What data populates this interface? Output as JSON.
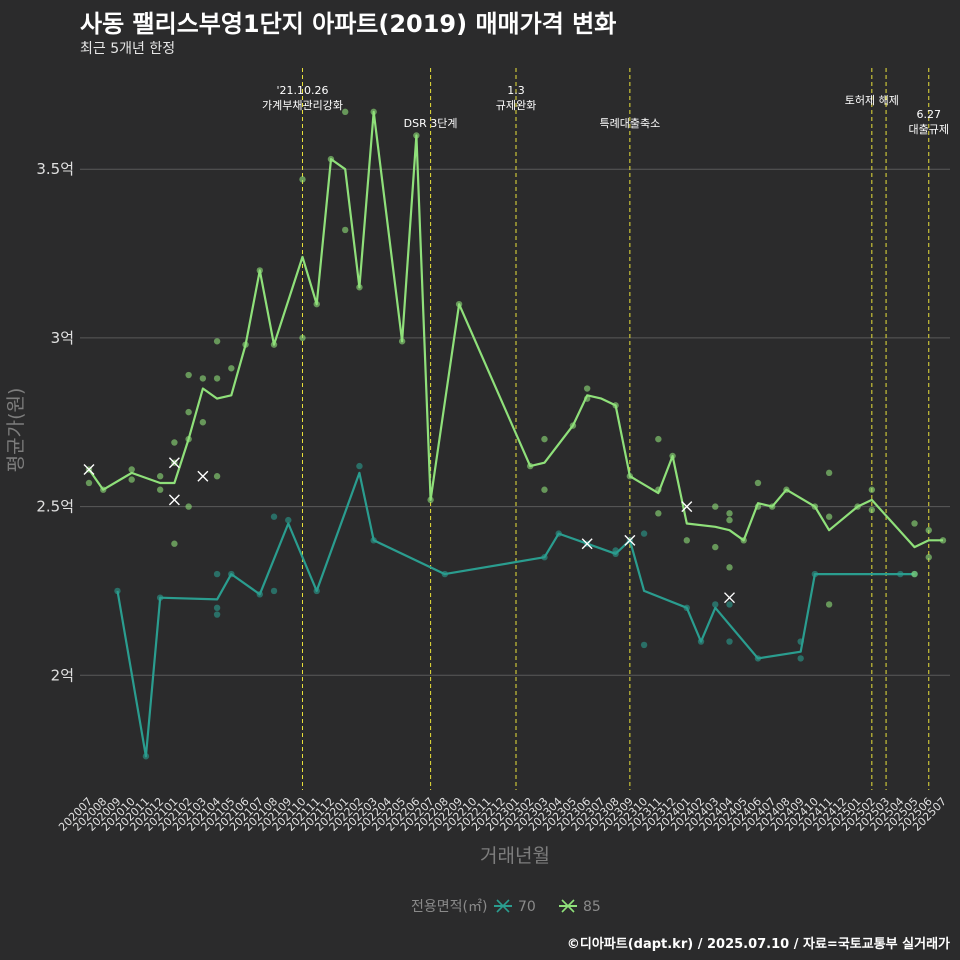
{
  "header": {
    "title": "사동 팰리스부영1단지 아파트(2019) 매매가격 변화",
    "subtitle": "최근 5개년 한정",
    "caption": "©디아파트(dapt.kr) / 2025.07.10 / 자료=국토교통부 실거래가"
  },
  "colors": {
    "background": "#2b2b2c",
    "grid": "#5a5a5a",
    "series_70": "#2a9d8f",
    "series_85": "#8fe07a",
    "event_line": "#e8e03a"
  },
  "chart_data": {
    "type": "line",
    "xlabel": "거래년월",
    "ylabel": "평균가(원)",
    "ylim": [
      1.66,
      3.8
    ],
    "yticks": [
      2,
      2.5,
      3,
      3.5
    ],
    "ytick_labels": [
      "2억",
      "2.5억",
      "3억",
      "3.5억"
    ],
    "months": [
      "202007",
      "202008",
      "202009",
      "202010",
      "202011",
      "202012",
      "202101",
      "202102",
      "202103",
      "202104",
      "202105",
      "202106",
      "202107",
      "202108",
      "202109",
      "202110",
      "202111",
      "202112",
      "202201",
      "202202",
      "202203",
      "202204",
      "202205",
      "202206",
      "202207",
      "202208",
      "202209",
      "202210",
      "202211",
      "202212",
      "202301",
      "202302",
      "202303",
      "202304",
      "202305",
      "202306",
      "202307",
      "202308",
      "202309",
      "202310",
      "202311",
      "202312",
      "202401",
      "202402",
      "202403",
      "202404",
      "202405",
      "202406",
      "202407",
      "202408",
      "202409",
      "202410",
      "202411",
      "202412",
      "202501",
      "202502",
      "202503",
      "202504",
      "202505",
      "202506",
      "202507"
    ],
    "legend_title": "전용면적(㎡)",
    "series": [
      {
        "name": "70",
        "color": "#2a9d8f",
        "line": [
          [
            "202009",
            2.25
          ],
          [
            "202011",
            1.76
          ],
          [
            "202012",
            2.23
          ],
          [
            "202104",
            2.225
          ],
          [
            "202105",
            2.3
          ],
          [
            "202107",
            2.24
          ],
          [
            "202109",
            2.45
          ],
          [
            "202111",
            2.25
          ],
          [
            "202202",
            2.6
          ],
          [
            "202203",
            2.4
          ],
          [
            "202208",
            2.3
          ],
          [
            "202303",
            2.35
          ],
          [
            "202304",
            2.42
          ],
          [
            "202306",
            2.39
          ],
          [
            "202308",
            2.36
          ],
          [
            "202309",
            2.4
          ],
          [
            "202310",
            2.25
          ],
          [
            "202401",
            2.2
          ],
          [
            "202402",
            2.1
          ],
          [
            "202403",
            2.2
          ],
          [
            "202404",
            2.15
          ],
          [
            "202406",
            2.05
          ],
          [
            "202409",
            2.07
          ],
          [
            "202410",
            2.3
          ],
          [
            "202504",
            2.3
          ],
          [
            "202505",
            2.3
          ]
        ],
        "points": [
          [
            "202009",
            2.25
          ],
          [
            "202011",
            1.76
          ],
          [
            "202012",
            2.23
          ],
          [
            "202104",
            2.2
          ],
          [
            "202104",
            2.18
          ],
          [
            "202104",
            2.3
          ],
          [
            "202105",
            2.3
          ],
          [
            "202107",
            2.24
          ],
          [
            "202108",
            2.25
          ],
          [
            "202108",
            2.47
          ],
          [
            "202109",
            2.46
          ],
          [
            "202111",
            2.25
          ],
          [
            "202202",
            2.62
          ],
          [
            "202203",
            2.4
          ],
          [
            "202208",
            2.3
          ],
          [
            "202303",
            2.35
          ],
          [
            "202304",
            2.42
          ],
          [
            "202306",
            2.39
          ],
          [
            "202308",
            2.36
          ],
          [
            "202308",
            2.37
          ],
          [
            "202309",
            2.4
          ],
          [
            "202310",
            2.09
          ],
          [
            "202310",
            2.42
          ],
          [
            "202401",
            2.2
          ],
          [
            "202402",
            2.1
          ],
          [
            "202403",
            2.21
          ],
          [
            "202404",
            2.1
          ],
          [
            "202404",
            2.21
          ],
          [
            "202406",
            2.05
          ],
          [
            "202409",
            2.05
          ],
          [
            "202409",
            2.1
          ],
          [
            "202410",
            2.3
          ],
          [
            "202504",
            2.3
          ],
          [
            "202505",
            2.3
          ]
        ],
        "cancelled": [
          [
            "202306",
            2.39
          ],
          [
            "202309",
            2.4
          ],
          [
            "202404",
            2.23
          ]
        ]
      },
      {
        "name": "85",
        "color": "#8fe07a",
        "line": [
          [
            "202007",
            2.61
          ],
          [
            "202008",
            2.55
          ],
          [
            "202010",
            2.6
          ],
          [
            "202012",
            2.57
          ],
          [
            "202101",
            2.57
          ],
          [
            "202102",
            2.7
          ],
          [
            "202103",
            2.85
          ],
          [
            "202104",
            2.82
          ],
          [
            "202105",
            2.83
          ],
          [
            "202106",
            2.98
          ],
          [
            "202107",
            3.2
          ],
          [
            "202108",
            2.98
          ],
          [
            "202110",
            3.24
          ],
          [
            "202111",
            3.1
          ],
          [
            "202112",
            3.53
          ],
          [
            "202201",
            3.5
          ],
          [
            "202202",
            3.15
          ],
          [
            "202203",
            3.67
          ],
          [
            "202205",
            2.99
          ],
          [
            "202206",
            3.6
          ],
          [
            "202207",
            2.52
          ],
          [
            "202209",
            3.1
          ],
          [
            "202302",
            2.62
          ],
          [
            "202303",
            2.63
          ],
          [
            "202305",
            2.74
          ],
          [
            "202306",
            2.83
          ],
          [
            "202307",
            2.82
          ],
          [
            "202308",
            2.8
          ],
          [
            "202309",
            2.59
          ],
          [
            "202311",
            2.54
          ],
          [
            "202312",
            2.65
          ],
          [
            "202401",
            2.45
          ],
          [
            "202403",
            2.44
          ],
          [
            "202404",
            2.43
          ],
          [
            "202405",
            2.4
          ],
          [
            "202406",
            2.51
          ],
          [
            "202407",
            2.5
          ],
          [
            "202408",
            2.55
          ],
          [
            "202410",
            2.5
          ],
          [
            "202411",
            2.43
          ],
          [
            "202501",
            2.5
          ],
          [
            "202502",
            2.52
          ],
          [
            "202505",
            2.38
          ],
          [
            "202506",
            2.4
          ],
          [
            "202507",
            2.4
          ]
        ],
        "points": [
          [
            "202007",
            2.57
          ],
          [
            "202007",
            2.61
          ],
          [
            "202008",
            2.55
          ],
          [
            "202010",
            2.61
          ],
          [
            "202010",
            2.58
          ],
          [
            "202012",
            2.59
          ],
          [
            "202012",
            2.55
          ],
          [
            "202101",
            2.69
          ],
          [
            "202101",
            2.63
          ],
          [
            "202101",
            2.39
          ],
          [
            "202102",
            2.89
          ],
          [
            "202102",
            2.78
          ],
          [
            "202102",
            2.7
          ],
          [
            "202102",
            2.5
          ],
          [
            "202103",
            2.88
          ],
          [
            "202103",
            2.75
          ],
          [
            "202104",
            2.99
          ],
          [
            "202104",
            2.88
          ],
          [
            "202104",
            2.59
          ],
          [
            "202105",
            2.91
          ],
          [
            "202106",
            2.98
          ],
          [
            "202107",
            3.2
          ],
          [
            "202108",
            2.98
          ],
          [
            "202110",
            3.47
          ],
          [
            "202110",
            3.0
          ],
          [
            "202111",
            3.1
          ],
          [
            "202112",
            3.53
          ],
          [
            "202201",
            3.32
          ],
          [
            "202201",
            3.67
          ],
          [
            "202202",
            3.15
          ],
          [
            "202203",
            3.67
          ],
          [
            "202205",
            2.99
          ],
          [
            "202206",
            3.6
          ],
          [
            "202207",
            2.52
          ],
          [
            "202209",
            3.1
          ],
          [
            "202302",
            2.62
          ],
          [
            "202303",
            2.7
          ],
          [
            "202303",
            2.55
          ],
          [
            "202305",
            2.74
          ],
          [
            "202306",
            2.85
          ],
          [
            "202306",
            2.82
          ],
          [
            "202308",
            2.8
          ],
          [
            "202309",
            2.59
          ],
          [
            "202311",
            2.7
          ],
          [
            "202311",
            2.55
          ],
          [
            "202311",
            2.48
          ],
          [
            "202312",
            2.65
          ],
          [
            "202401",
            2.4
          ],
          [
            "202403",
            2.5
          ],
          [
            "202403",
            2.38
          ],
          [
            "202404",
            2.48
          ],
          [
            "202404",
            2.46
          ],
          [
            "202404",
            2.32
          ],
          [
            "202405",
            2.4
          ],
          [
            "202406",
            2.57
          ],
          [
            "202406",
            2.5
          ],
          [
            "202407",
            2.5
          ],
          [
            "202408",
            2.55
          ],
          [
            "202410",
            2.5
          ],
          [
            "202411",
            2.6
          ],
          [
            "202411",
            2.47
          ],
          [
            "202411",
            2.21
          ],
          [
            "202501",
            2.5
          ],
          [
            "202502",
            2.55
          ],
          [
            "202502",
            2.49
          ],
          [
            "202505",
            2.45
          ],
          [
            "202505",
            2.3
          ],
          [
            "202506",
            2.43
          ],
          [
            "202506",
            2.35
          ],
          [
            "202507",
            2.4
          ]
        ],
        "cancelled": [
          [
            "202007",
            2.61
          ],
          [
            "202101",
            2.63
          ],
          [
            "202101",
            2.52
          ],
          [
            "202103",
            2.59
          ],
          [
            "202401",
            2.5
          ]
        ]
      }
    ],
    "events": [
      {
        "month": "202110",
        "lines": [
          "'21.10.26",
          "가계부채관리강화"
        ],
        "level": 0
      },
      {
        "month": "202207",
        "lines": [
          "DSR 3단계"
        ],
        "level": 2
      },
      {
        "month": "202301",
        "lines": [
          "1.3",
          "규제완화"
        ],
        "level": 0
      },
      {
        "month": "202309",
        "lines": [
          "특례대출축소"
        ],
        "level": 2
      },
      {
        "month": "202502",
        "lines": [
          "토허제 해제"
        ],
        "level": 1
      },
      {
        "month": "202503",
        "lines": [],
        "level": 1
      },
      {
        "month": "202506",
        "lines": [
          "6.27",
          "대출규제"
        ],
        "level": 3
      }
    ]
  }
}
